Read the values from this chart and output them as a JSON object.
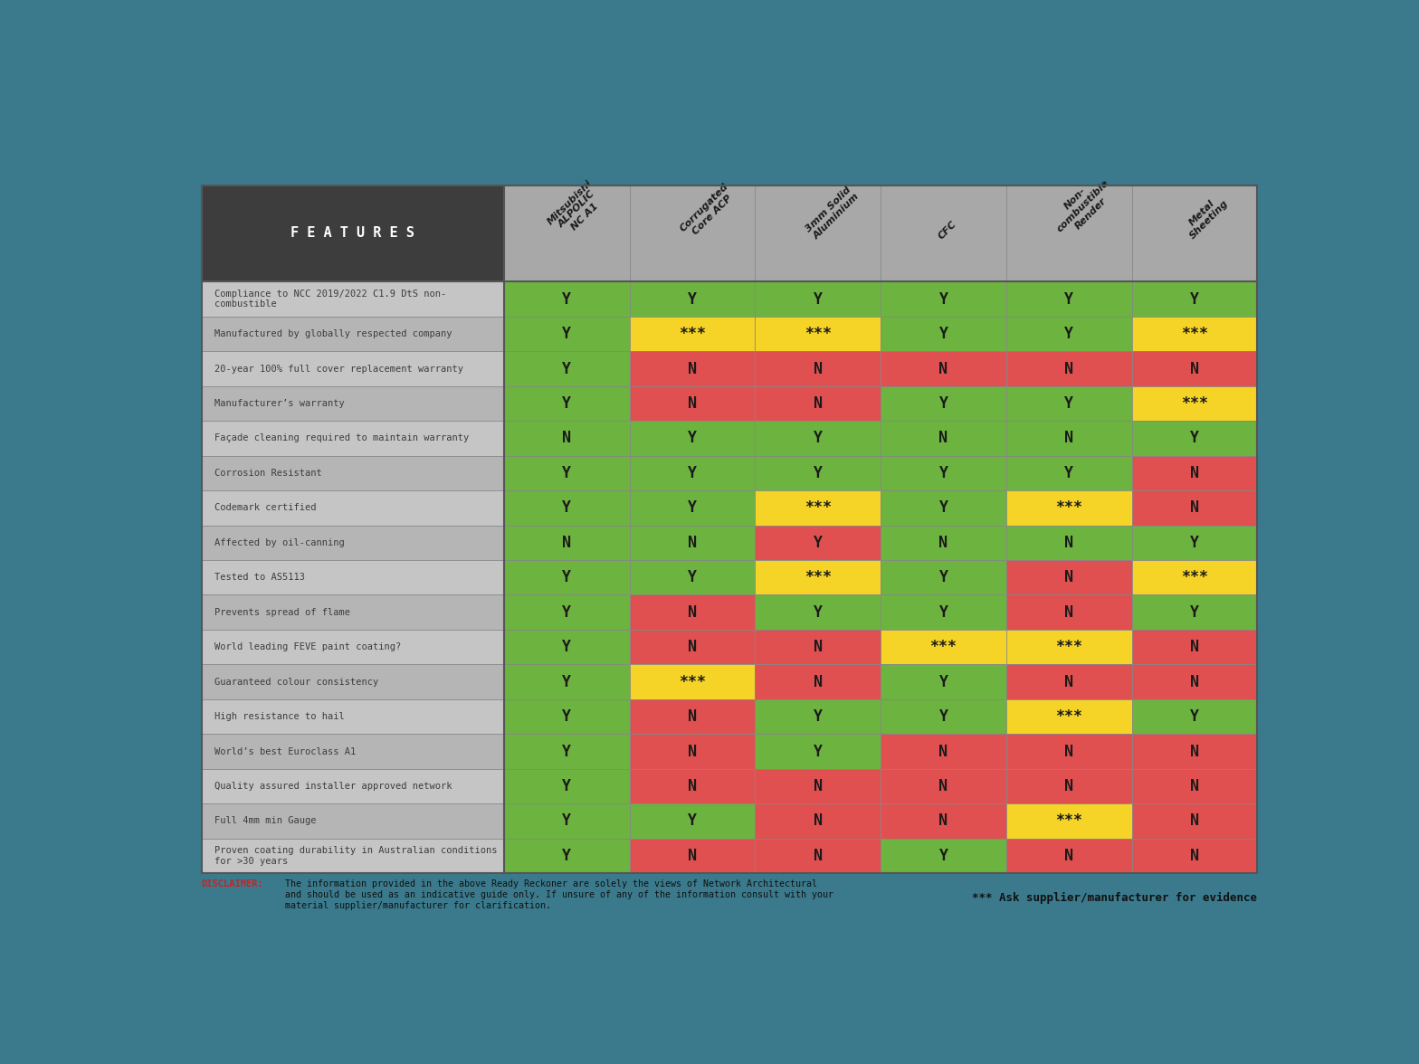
{
  "background_color": "#3a7a8c",
  "header_bg": "#3d3d3d",
  "header_text_color": "#ffffff",
  "feature_col_bg": "#b8b8b8",
  "feature_text_color": "#3d3d3d",
  "col_header_bg": "#a8a8a8",
  "green": "#6db33f",
  "red": "#e05050",
  "yellow": "#f5d327",
  "features_header": "F E A T U R E S",
  "columns": [
    "Mitsubishi\nALPOLIC\nNC A1",
    "Corrugated\nCore ACP",
    "3mm Solid\nAluminium",
    "CFC",
    "Non-\ncombustible\nRender",
    "Metal\nSheeting"
  ],
  "rows": [
    "Compliance to NCC 2019/2022 C1.9 DtS non-\ncombustible",
    "Manufactured by globally respected company",
    "20-year 100% full cover replacement warranty",
    "Manufacturer’s warranty",
    "Façade cleaning required to maintain warranty",
    "Corrosion Resistant",
    "Codemark certified",
    "Affected by oil-canning",
    "Tested to AS5113",
    "Prevents spread of flame",
    "World leading FEVE paint coating?",
    "Guaranteed colour consistency",
    "High resistance to hail",
    "World’s best Euroclass A1",
    "Quality assured installer approved network",
    "Full 4mm min Gauge",
    "Proven coating durability in Australian conditions\nfor >30 years"
  ],
  "data": [
    [
      "G",
      "G",
      "G",
      "G",
      "G",
      "G"
    ],
    [
      "G",
      "Y",
      "Y",
      "G",
      "G",
      "Y"
    ],
    [
      "G",
      "R",
      "R",
      "R",
      "R",
      "R"
    ],
    [
      "G",
      "R",
      "R",
      "G",
      "G",
      "Y"
    ],
    [
      "G",
      "G",
      "G",
      "G",
      "G",
      "G"
    ],
    [
      "G",
      "G",
      "G",
      "G",
      "G",
      "R"
    ],
    [
      "G",
      "G",
      "Y",
      "G",
      "Y",
      "R"
    ],
    [
      "G",
      "G",
      "R",
      "G",
      "G",
      "G"
    ],
    [
      "G",
      "G",
      "Y",
      "G",
      "R",
      "Y"
    ],
    [
      "G",
      "R",
      "G",
      "G",
      "R",
      "G"
    ],
    [
      "G",
      "R",
      "R",
      "Y",
      "Y",
      "R"
    ],
    [
      "G",
      "Y",
      "R",
      "G",
      "R",
      "R"
    ],
    [
      "G",
      "R",
      "G",
      "G",
      "Y",
      "G"
    ],
    [
      "G",
      "R",
      "G",
      "R",
      "R",
      "R"
    ],
    [
      "G",
      "R",
      "R",
      "R",
      "R",
      "R"
    ],
    [
      "G",
      "G",
      "R",
      "R",
      "Y",
      "R"
    ],
    [
      "G",
      "R",
      "R",
      "G",
      "R",
      "R"
    ]
  ],
  "cell_values": [
    [
      "Y",
      "Y",
      "Y",
      "Y",
      "Y",
      "Y"
    ],
    [
      "Y",
      "***",
      "***",
      "Y",
      "Y",
      "***"
    ],
    [
      "Y",
      "N",
      "N",
      "N",
      "N",
      "N"
    ],
    [
      "Y",
      "N",
      "N",
      "Y",
      "Y",
      "***"
    ],
    [
      "N",
      "Y",
      "Y",
      "N",
      "N",
      "Y"
    ],
    [
      "Y",
      "Y",
      "Y",
      "Y",
      "Y",
      "N"
    ],
    [
      "Y",
      "Y",
      "***",
      "Y",
      "***",
      "N"
    ],
    [
      "N",
      "N",
      "Y",
      "N",
      "N",
      "Y"
    ],
    [
      "Y",
      "Y",
      "***",
      "Y",
      "N",
      "***"
    ],
    [
      "Y",
      "N",
      "Y",
      "Y",
      "N",
      "Y"
    ],
    [
      "Y",
      "N",
      "N",
      "***",
      "***",
      "N"
    ],
    [
      "Y",
      "***",
      "N",
      "Y",
      "N",
      "N"
    ],
    [
      "Y",
      "N",
      "Y",
      "Y",
      "***",
      "Y"
    ],
    [
      "Y",
      "N",
      "Y",
      "N",
      "N",
      "N"
    ],
    [
      "Y",
      "N",
      "N",
      "N",
      "N",
      "N"
    ],
    [
      "Y",
      "Y",
      "N",
      "N",
      "***",
      "N"
    ],
    [
      "Y",
      "N",
      "N",
      "Y",
      "N",
      "N"
    ]
  ],
  "disclaimer_label": "DISCLAIMER:",
  "disclaimer_body": "The information provided in the above Ready Reckoner are solely the views of Network Architectural\nand should be used as an indicative guide only. If unsure of any of the information consult with your\nmaterial supplier/manufacturer for clarification.",
  "note": "*** Ask supplier/manufacturer for evidence"
}
